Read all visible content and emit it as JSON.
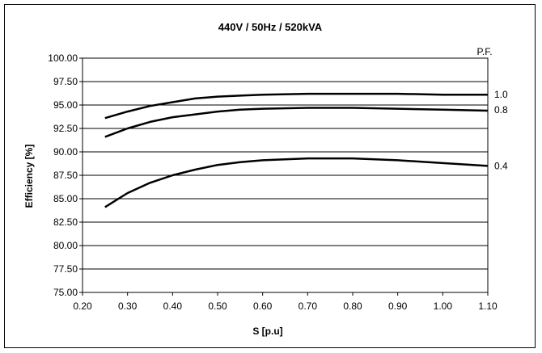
{
  "chart_data": {
    "type": "line",
    "title": "440V / 50Hz / 520kVA",
    "xlabel": "S [p.u]",
    "ylabel": "Efficiency [%]",
    "xlim": [
      0.2,
      1.1
    ],
    "ylim": [
      75,
      100
    ],
    "xticks": [
      "0.20",
      "0.30",
      "0.40",
      "0.50",
      "0.60",
      "0.70",
      "0.80",
      "0.90",
      "1.00",
      "1.10"
    ],
    "yticks": [
      "75.00",
      "77.50",
      "80.00",
      "82.50",
      "85.00",
      "87.50",
      "90.00",
      "92.50",
      "95.00",
      "97.50",
      "100.00"
    ],
    "grid": "horizontal",
    "legend_title": "P.F.",
    "series": [
      {
        "name": "1.0",
        "x": [
          0.25,
          0.3,
          0.35,
          0.4,
          0.45,
          0.5,
          0.55,
          0.6,
          0.7,
          0.8,
          0.9,
          1.0,
          1.1
        ],
        "y": [
          93.6,
          94.3,
          94.9,
          95.3,
          95.7,
          95.9,
          96.0,
          96.1,
          96.2,
          96.2,
          96.2,
          96.1,
          96.1
        ]
      },
      {
        "name": "0.8",
        "x": [
          0.25,
          0.3,
          0.35,
          0.4,
          0.45,
          0.5,
          0.55,
          0.6,
          0.7,
          0.8,
          0.9,
          1.0,
          1.1
        ],
        "y": [
          91.6,
          92.5,
          93.2,
          93.7,
          94.0,
          94.3,
          94.5,
          94.6,
          94.7,
          94.7,
          94.6,
          94.5,
          94.4
        ]
      },
      {
        "name": "0.4",
        "x": [
          0.25,
          0.3,
          0.35,
          0.4,
          0.45,
          0.5,
          0.55,
          0.6,
          0.7,
          0.8,
          0.9,
          1.0,
          1.1
        ],
        "y": [
          84.1,
          85.6,
          86.7,
          87.5,
          88.1,
          88.6,
          88.9,
          89.1,
          89.3,
          89.3,
          89.1,
          88.8,
          88.5
        ]
      }
    ]
  }
}
